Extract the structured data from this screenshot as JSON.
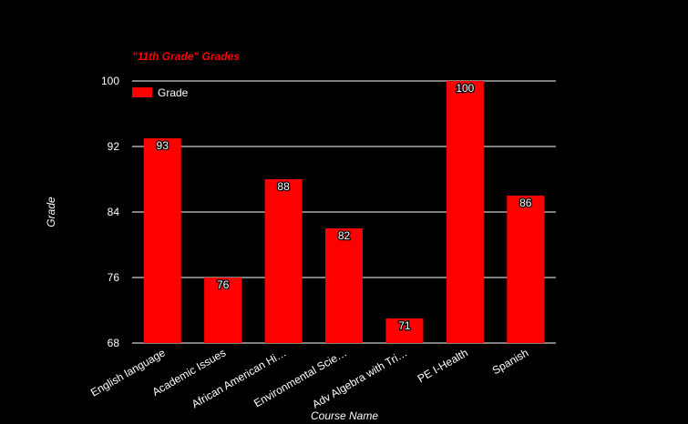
{
  "chart_data": {
    "type": "bar",
    "title": "\"11th Grade\" Grades",
    "xlabel": "Course Name",
    "ylabel": "Grade",
    "categories": [
      "English language",
      "Academic Issues",
      "African American Hi…",
      "Environmental Scie…",
      "Adv Algebra with Tri…",
      "PE I-Health",
      "Spanish"
    ],
    "series": [
      {
        "name": "Grade",
        "values": [
          93,
          76,
          88,
          82,
          71,
          100,
          86
        ]
      }
    ],
    "ylim": [
      68,
      100
    ],
    "yticks": [
      68,
      76,
      84,
      92,
      100
    ],
    "grid": true,
    "legend": "top-left",
    "bar_color": "#ff0000",
    "background": "#000000",
    "title_color": "#ff0000",
    "text_color": "#ffffff"
  }
}
